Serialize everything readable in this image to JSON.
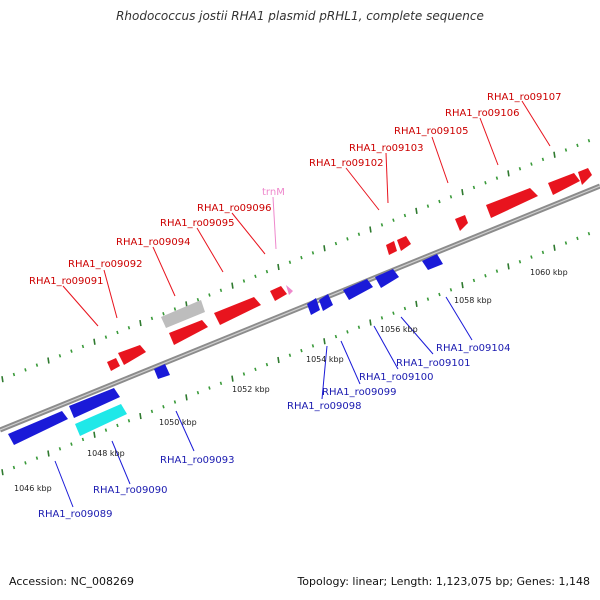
{
  "title": "Rhodococcus jostii RHA1 plasmid pRHL1, complete sequence",
  "footer": {
    "accession": "Accession: NC_008269",
    "summary": "Topology: linear; Length: 1,123,075 bp; Genes: 1,148"
  },
  "colors": {
    "forward": "#e8141e",
    "reverse": "#1a1ad8",
    "pseudo": "#bdbdbd",
    "rna": "#1fe8e8",
    "trna": "#ee88cc",
    "tick": "#2f8f2f",
    "backbone": "#999999"
  },
  "upper_labels": [
    {
      "text": "RHA1_ro09091"
    },
    {
      "text": "RHA1_ro09092"
    },
    {
      "text": "RHA1_ro09094"
    },
    {
      "text": "RHA1_ro09095"
    },
    {
      "text": "RHA1_ro09096"
    },
    {
      "text": "trnM"
    },
    {
      "text": "RHA1_ro09102"
    },
    {
      "text": "RHA1_ro09103"
    },
    {
      "text": "RHA1_ro09105"
    },
    {
      "text": "RHA1_ro09106"
    },
    {
      "text": "RHA1_ro09107"
    }
  ],
  "lower_labels": [
    {
      "text": "RHA1_ro09089"
    },
    {
      "text": "RHA1_ro09090"
    },
    {
      "text": "RHA1_ro09093"
    },
    {
      "text": "RHA1_ro09098"
    },
    {
      "text": "RHA1_ro09099"
    },
    {
      "text": "RHA1_ro09100"
    },
    {
      "text": "RHA1_ro09101"
    },
    {
      "text": "RHA1_ro09104"
    }
  ],
  "ticks": [
    "1046 kbp",
    "1048 kbp",
    "1050 kbp",
    "1052 kbp",
    "1054 kbp",
    "1056 kbp",
    "1058 kbp",
    "1060 kbp"
  ]
}
